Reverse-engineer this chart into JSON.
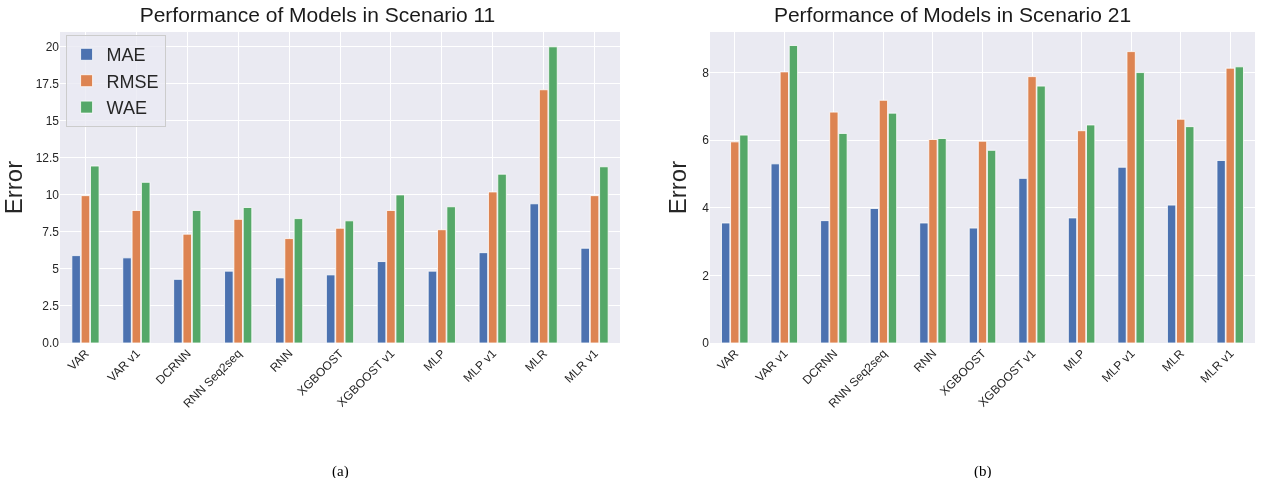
{
  "chart_data": [
    {
      "type": "bar",
      "title": "Performance of Models in Scenario 11",
      "ylabel": "Error",
      "annotations": [
        "(a)"
      ],
      "categories": [
        "VAR",
        "VAR v1",
        "DCRNN",
        "RNN Seq2seq",
        "RNN",
        "XGBOOST",
        "XGBOOST v1",
        "MLP",
        "MLP v1",
        "MLR",
        "MLR v1"
      ],
      "series": [
        {
          "name": "MAE",
          "color": "#4c72b0",
          "values": [
            5.9,
            5.75,
            4.3,
            4.85,
            4.4,
            4.6,
            5.5,
            4.85,
            6.1,
            9.4,
            6.4
          ]
        },
        {
          "name": "RMSE",
          "color": "#dd8452",
          "values": [
            9.95,
            8.95,
            7.35,
            8.35,
            7.05,
            7.75,
            8.95,
            7.65,
            10.2,
            17.1,
            9.95
          ]
        },
        {
          "name": "WAE",
          "color": "#55a868",
          "values": [
            11.95,
            10.85,
            8.95,
            9.15,
            8.4,
            8.25,
            10.0,
            9.2,
            11.4,
            20.0,
            11.9
          ]
        }
      ],
      "ylim": [
        0,
        21
      ],
      "yticks": [
        {
          "value": 0,
          "label": "0.0"
        },
        2.5,
        5.0,
        7.5,
        10.0,
        12.5,
        15.0,
        17.5,
        20.0
      ],
      "grid": true,
      "legend": "top left"
    },
    {
      "type": "bar",
      "title": "Performance of Models in Scenario 21",
      "ylabel": "Error",
      "annotations": [
        "(b)"
      ],
      "categories": [
        "VAR",
        "VAR v1",
        "DCRNN",
        "RNN Seq2seq",
        "RNN",
        "XGBOOST",
        "XGBOOST v1",
        "MLP",
        "MLP v1",
        "MLR",
        "MLR v1"
      ],
      "series": [
        {
          "color": "#4c72b0",
          "values": [
            3.55,
            5.3,
            3.62,
            3.98,
            3.55,
            3.4,
            4.87,
            3.7,
            5.2,
            4.08,
            5.4
          ]
        },
        {
          "color": "#dd8452",
          "values": [
            5.95,
            8.02,
            6.83,
            7.18,
            6.02,
            5.97,
            7.88,
            6.28,
            8.62,
            6.62,
            8.13
          ]
        },
        {
          "color": "#55a868",
          "values": [
            6.15,
            8.8,
            6.2,
            6.8,
            6.05,
            5.7,
            7.6,
            6.45,
            8.0,
            6.4,
            8.17
          ]
        }
      ],
      "ylim": [
        0,
        9.2
      ],
      "yticks": [
        0,
        2,
        4,
        6,
        8
      ],
      "grid": true
    }
  ]
}
